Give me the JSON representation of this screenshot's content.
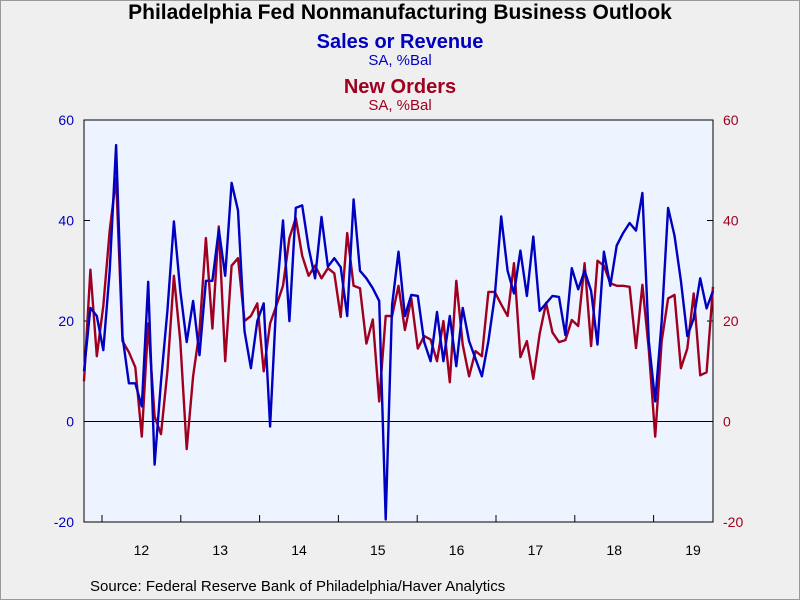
{
  "chart_data": {
    "type": "line",
    "title": "Philadelphia Fed Nonmanufacturing Business Outlook",
    "series": [
      {
        "name": "Sales or Revenue",
        "subtitle": "SA, %Bal",
        "color": "#0000c0",
        "axis": "left",
        "values": [
          10,
          22.6,
          21,
          14.2,
          30,
          55,
          17,
          7.6,
          7.6,
          3,
          27.8,
          -8.6,
          8,
          22,
          39.8,
          26,
          15.8,
          24,
          13.2,
          28,
          28,
          38.2,
          29,
          47.5,
          42,
          18,
          10.6,
          20,
          23.5,
          -1,
          25,
          40,
          20,
          42.5,
          43,
          34.6,
          28.5,
          40.7,
          30.8,
          32.5,
          30.7,
          21,
          44.2,
          30,
          28.5,
          26.5,
          24,
          -19.5,
          23.2,
          33.8,
          21,
          25.2,
          25,
          15.8,
          12,
          21.8,
          12,
          21,
          11,
          22.6,
          16,
          12.5,
          9,
          16,
          25,
          40.8,
          30,
          25.5,
          34,
          25,
          36.8,
          22,
          23.5,
          25,
          24.8,
          17.2,
          30.5,
          26.3,
          30,
          26,
          15.3,
          33.8,
          27,
          35,
          37.5,
          39.5,
          38,
          45.5,
          16,
          4,
          20,
          42.5,
          37,
          28,
          17,
          20.5,
          28.5,
          22.5,
          26
        ],
        "endpoints": [
          "2011-07",
          "2019-07"
        ]
      },
      {
        "name": "New Orders",
        "subtitle": "SA, %Bal",
        "color": "#a00020",
        "axis": "right",
        "values": [
          8,
          30.2,
          13,
          23,
          38,
          48.5,
          16,
          13.8,
          10.8,
          -3,
          19.5,
          1,
          -2.5,
          10,
          29,
          16,
          -5.5,
          9,
          18,
          36.5,
          18.5,
          38.8,
          12,
          31,
          32.5,
          20,
          21,
          23.5,
          10,
          19.5,
          23.2,
          27,
          36.5,
          40.5,
          33,
          29,
          31,
          28.5,
          30.5,
          29.5,
          20.8,
          37.5,
          27,
          26.5,
          15.5,
          20.3,
          4,
          21,
          21,
          27,
          18.2,
          24.5,
          14.5,
          17,
          16.3,
          12,
          20,
          7.8,
          28,
          15.3,
          9,
          14,
          13,
          25.8,
          25.8,
          23.3,
          21,
          31.5,
          12.8,
          16,
          8.5,
          17.5,
          23.6,
          17.7,
          15.8,
          16.2,
          20.2,
          19,
          31.5,
          15,
          32,
          31,
          27.5,
          27,
          27,
          26.8,
          14.6,
          27.2,
          14.3,
          -3,
          16,
          24.5,
          25.2,
          10.6,
          14.5,
          25.5,
          9.2,
          9.8,
          26.8
        ],
        "endpoints": [
          "2011-07",
          "2019-07"
        ]
      }
    ],
    "x_tick_labels": [
      "12",
      "13",
      "14",
      "15",
      "16",
      "17",
      "18",
      "19"
    ],
    "left_axis": {
      "ticks": [
        "60",
        "40",
        "20",
        "0",
        "-20"
      ],
      "ylim": [
        -20,
        60
      ],
      "color": "#0000c0"
    },
    "right_axis": {
      "ticks": [
        "60",
        "40",
        "20",
        "0",
        "-20"
      ],
      "ylim": [
        -20,
        60
      ],
      "color": "#a00020"
    },
    "zero_line": true,
    "grid": false,
    "plot_background": "#eef4ff",
    "source": "Source:  Federal Reserve Bank of Philadelphia/Haver Analytics"
  }
}
